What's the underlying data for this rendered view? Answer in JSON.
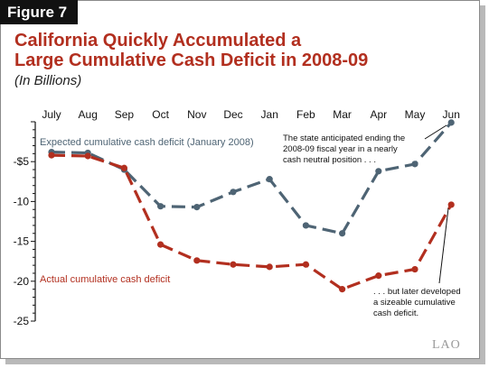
{
  "figure_label": "Figure 7",
  "title_line1": "California Quickly Accumulated a",
  "title_line2": "Large Cumulative Cash Deficit in 2008-09",
  "subtitle": "(In Billions)",
  "logo_text": "LAO",
  "colors": {
    "expected": "#4e6474",
    "actual": "#b22f1f",
    "title": "#b22f1f"
  },
  "chart_data": {
    "type": "line",
    "categories": [
      "July",
      "Aug",
      "Sep",
      "Oct",
      "Nov",
      "Dec",
      "Jan",
      "Feb",
      "Mar",
      "Apr",
      "May",
      "Jun"
    ],
    "y_ticks": [
      {
        "value": -5,
        "label": "-$5"
      },
      {
        "value": -10,
        "label": "-10"
      },
      {
        "value": -15,
        "label": "-15"
      },
      {
        "value": -20,
        "label": "-20"
      },
      {
        "value": -25,
        "label": "-25"
      }
    ],
    "ylim": [
      -25,
      0
    ],
    "series": [
      {
        "name": "Expected cumulative cash deficit (January 2008)",
        "values": [
          -3.8,
          -3.9,
          -6.0,
          -10.6,
          -10.7,
          -8.8,
          -7.2,
          -13.0,
          -14.0,
          -6.2,
          -5.3,
          -0.1
        ]
      },
      {
        "name": "Actual cumulative cash deficit",
        "values": [
          -4.2,
          -4.3,
          -5.8,
          -15.4,
          -17.4,
          -17.9,
          -18.2,
          -17.9,
          -21.0,
          -19.3,
          -18.5,
          -10.4
        ]
      }
    ],
    "annotations": {
      "top": [
        "The state anticipated ending the",
        "2008-09 fiscal year in a nearly",
        "cash neutral position . . ."
      ],
      "bottom": [
        ". . . but later developed",
        "a sizeable cumulative",
        "cash deficit."
      ]
    }
  }
}
